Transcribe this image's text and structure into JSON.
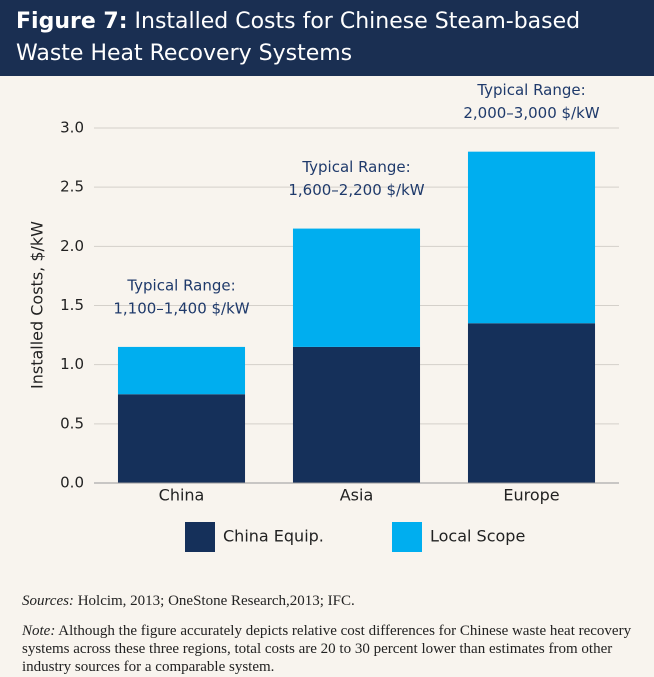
{
  "chart_data": {
    "type": "stacked_bar",
    "title_label": "Figure 7:",
    "title": "Installed Costs for Chinese Steam-based Waste Heat Recovery Systems",
    "y_label": "Installed Costs, $/kW",
    "categories": [
      "China",
      "Asia",
      "Europe"
    ],
    "series": [
      {
        "name": "China Equip.",
        "color": "#15305a",
        "values": [
          0.75,
          1.15,
          1.35
        ]
      },
      {
        "name": "Local Scope",
        "color": "#00aeef",
        "values": [
          0.4,
          1.0,
          1.45
        ]
      }
    ],
    "annotations": [
      [
        "Typical Range:",
        "1,100–1,400 $/kW"
      ],
      [
        "Typical Range:",
        "1,600–2,200 $/kW"
      ],
      [
        "Typical Range:",
        "2,000–3,000 $/kW"
      ]
    ],
    "ylim": [
      0,
      3.0
    ],
    "yticks": [
      {
        "value": 0,
        "label": "0.0"
      },
      0.5,
      {
        "value": 1,
        "label": "1.0"
      },
      1.5,
      {
        "value": 2,
        "label": "2.0"
      },
      2.5,
      {
        "value": 3,
        "label": "3.0"
      }
    ],
    "grid": true,
    "legend": "bottom",
    "sources_label": "Sources:",
    "sources": "Holcim, 2013; OneStone Research,2013; IFC.",
    "note_label": "Note:",
    "note": "Although the figure accurately depicts relative cost differences for Chinese waste heat recovery systems across these three regions, total costs are 20 to 30 percent lower than estimates from other industry sources for a comparable system."
  }
}
